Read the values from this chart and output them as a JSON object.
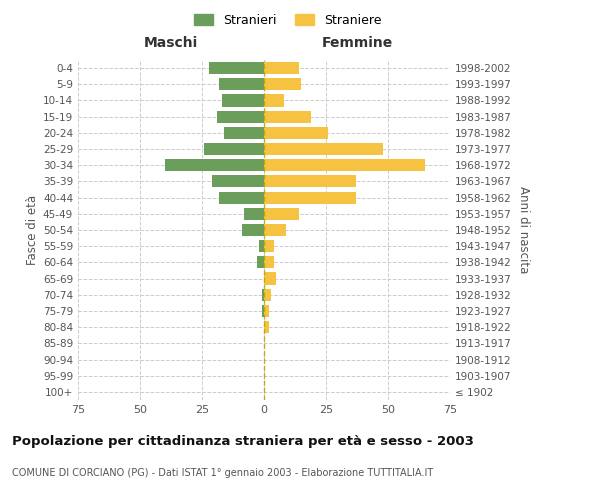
{
  "age_groups": [
    "100+",
    "95-99",
    "90-94",
    "85-89",
    "80-84",
    "75-79",
    "70-74",
    "65-69",
    "60-64",
    "55-59",
    "50-54",
    "45-49",
    "40-44",
    "35-39",
    "30-34",
    "25-29",
    "20-24",
    "15-19",
    "10-14",
    "5-9",
    "0-4"
  ],
  "birth_years": [
    "≤ 1902",
    "1903-1907",
    "1908-1912",
    "1913-1917",
    "1918-1922",
    "1923-1927",
    "1928-1932",
    "1933-1937",
    "1938-1942",
    "1943-1947",
    "1948-1952",
    "1953-1957",
    "1958-1962",
    "1963-1967",
    "1968-1972",
    "1973-1977",
    "1978-1982",
    "1983-1987",
    "1988-1992",
    "1993-1997",
    "1998-2002"
  ],
  "maschi": [
    0,
    0,
    0,
    0,
    0,
    1,
    1,
    0,
    3,
    2,
    9,
    8,
    18,
    21,
    40,
    24,
    16,
    19,
    17,
    18,
    22
  ],
  "femmine": [
    0,
    0,
    0,
    0,
    2,
    2,
    3,
    5,
    4,
    4,
    9,
    14,
    37,
    37,
    65,
    48,
    26,
    19,
    8,
    15,
    14
  ],
  "male_color": "#6a9e5a",
  "female_color": "#f5c242",
  "grid_color": "#cccccc",
  "title": "Popolazione per cittadinanza straniera per età e sesso - 2003",
  "subtitle": "COMUNE DI CORCIANO (PG) - Dati ISTAT 1° gennaio 2003 - Elaborazione TUTTITALIA.IT",
  "xlabel_left": "Maschi",
  "xlabel_right": "Femmine",
  "ylabel_left": "Fasce di età",
  "ylabel_right": "Anni di nascita",
  "legend_stranieri": "Stranieri",
  "legend_straniere": "Straniere",
  "xlim": 75,
  "bg_color": "#ffffff"
}
